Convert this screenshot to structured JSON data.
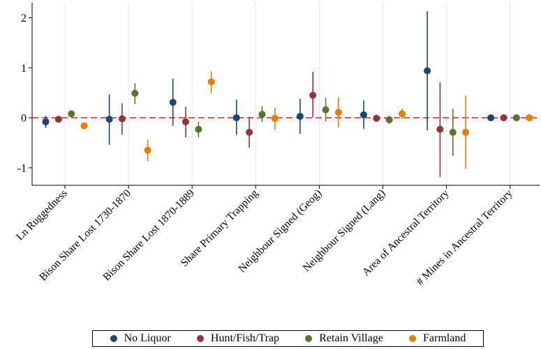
{
  "chart_data": {
    "type": "scatter",
    "title": "",
    "xlabel": "",
    "ylabel": "",
    "ylim": [
      -1.35,
      2.3
    ],
    "yticks": [
      -1,
      0,
      1,
      2
    ],
    "yticklabels": [
      "-1",
      "0",
      "1",
      "2"
    ],
    "categories": [
      "Ln Ruggedness",
      "Bison Share Lost 1730-1870",
      "Bison Share Lost 1870-1889",
      "Share Primary Trapping",
      "Neighbour Signed (Geog)",
      "Neighbour Signed (Lang)",
      "Area of Ancestral Territory",
      "# Mines in Ancestral Territory"
    ],
    "reference_line": 0,
    "reference_line_style": "dashed",
    "grid": "vertical",
    "legend_position": "bottom",
    "series": [
      {
        "name": "No Liquor",
        "color": "#1a476f",
        "values": [
          -0.08,
          -0.03,
          0.31,
          0.0,
          0.03,
          0.06,
          0.94,
          0.0
        ],
        "ci_low": [
          -0.2,
          -0.54,
          -0.16,
          -0.34,
          -0.32,
          -0.22,
          -0.25,
          -0.04
        ],
        "ci_high": [
          0.04,
          0.47,
          0.78,
          0.36,
          0.38,
          0.35,
          2.13,
          0.04
        ]
      },
      {
        "name": "Hunt/Fish/Trap",
        "color": "#90353b",
        "values": [
          -0.03,
          -0.02,
          -0.08,
          -0.29,
          0.45,
          -0.01,
          -0.23,
          0.0
        ],
        "ci_low": [
          -0.09,
          -0.34,
          -0.39,
          -0.6,
          0.01,
          -0.08,
          -1.18,
          -0.04
        ],
        "ci_high": [
          0.03,
          0.29,
          0.22,
          0.02,
          0.92,
          0.06,
          0.71,
          0.04
        ]
      },
      {
        "name": "Retain Village",
        "color": "#55752f",
        "values": [
          0.08,
          0.49,
          -0.23,
          0.07,
          0.16,
          -0.04,
          -0.29,
          0.0
        ],
        "ci_low": [
          0.03,
          0.28,
          -0.39,
          -0.08,
          -0.07,
          -0.12,
          -0.76,
          -0.03
        ],
        "ci_high": [
          0.13,
          0.69,
          -0.08,
          0.23,
          0.4,
          0.04,
          0.18,
          0.03
        ]
      },
      {
        "name": "Farmland",
        "color": "#e37e00",
        "values": [
          -0.16,
          -0.65,
          0.72,
          -0.01,
          0.11,
          0.08,
          -0.29,
          0.0
        ],
        "ci_low": [
          -0.2,
          -0.87,
          0.5,
          -0.24,
          -0.19,
          -0.02,
          -1.02,
          -0.03
        ],
        "ci_high": [
          -0.12,
          -0.44,
          0.93,
          0.2,
          0.41,
          0.18,
          0.44,
          0.03
        ]
      }
    ]
  }
}
